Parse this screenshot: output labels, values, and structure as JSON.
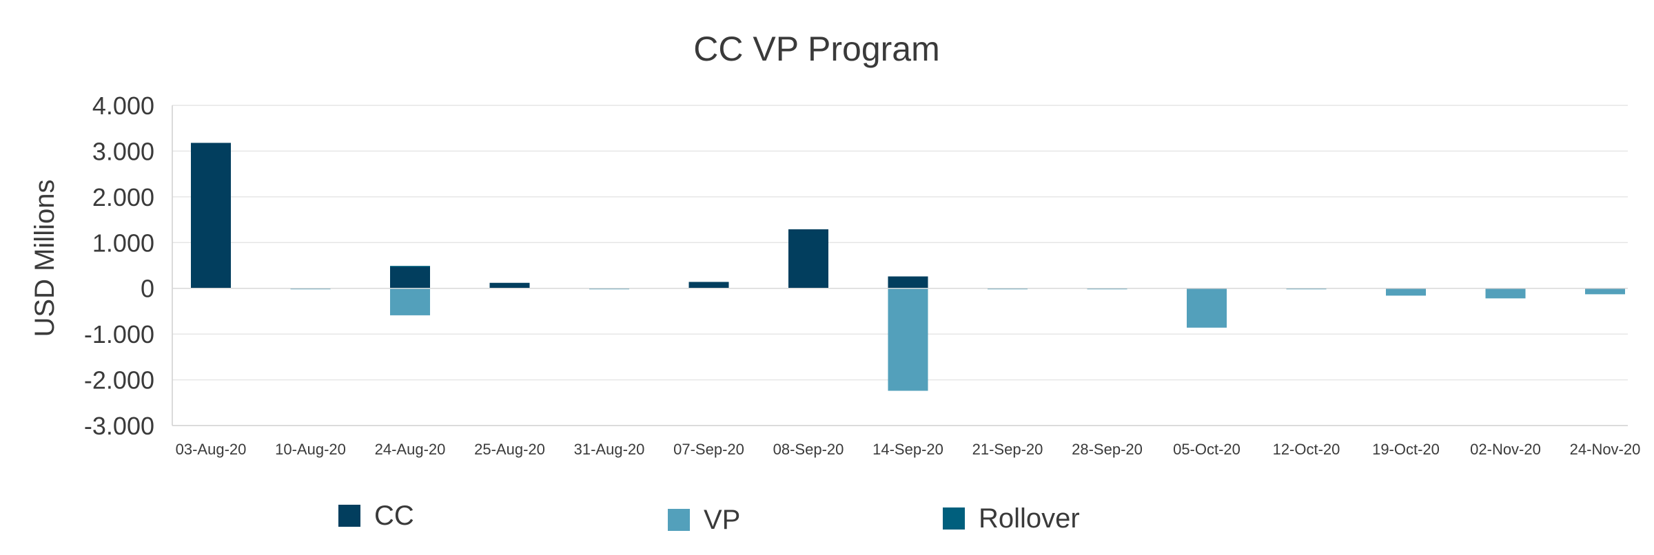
{
  "chart_data": {
    "type": "bar",
    "stacked": true,
    "title": "CC VP Program",
    "ylabel": "USD Millions",
    "xlabel": "",
    "ylim": [
      -3000,
      4000
    ],
    "yticks": [
      4000,
      3000,
      2000,
      1000,
      0,
      -1000,
      -2000,
      -3000
    ],
    "ytick_labels": [
      "4.000",
      "3.000",
      "2.000",
      "1.000",
      "0",
      "-1.000",
      "-2.000",
      "-3.000"
    ],
    "grid": true,
    "legend_position": "bottom",
    "categories": [
      "03-Aug-20",
      "10-Aug-20",
      "24-Aug-20",
      "25-Aug-20",
      "31-Aug-20",
      "07-Sep-20",
      "08-Sep-20",
      "14-Sep-20",
      "21-Sep-20",
      "28-Sep-20",
      "05-Oct-20",
      "12-Oct-20",
      "19-Oct-20",
      "02-Nov-20",
      "24-Nov-20"
    ],
    "series": [
      {
        "name": "CC",
        "color": "#023e5e",
        "values": [
          3180,
          0,
          470,
          120,
          0,
          140,
          1290,
          260,
          0,
          0,
          0,
          0,
          0,
          0,
          0
        ]
      },
      {
        "name": "VP",
        "color": "#53a0bb",
        "values": [
          0,
          -20,
          -590,
          0,
          -20,
          0,
          0,
          -2240,
          -20,
          -20,
          -860,
          -20,
          -160,
          -220,
          -130
        ]
      },
      {
        "name": "Rollover",
        "color": "#005f7d",
        "values": [
          0,
          0,
          20,
          0,
          0,
          0,
          0,
          0,
          0,
          0,
          0,
          0,
          0,
          0,
          0
        ]
      }
    ]
  }
}
